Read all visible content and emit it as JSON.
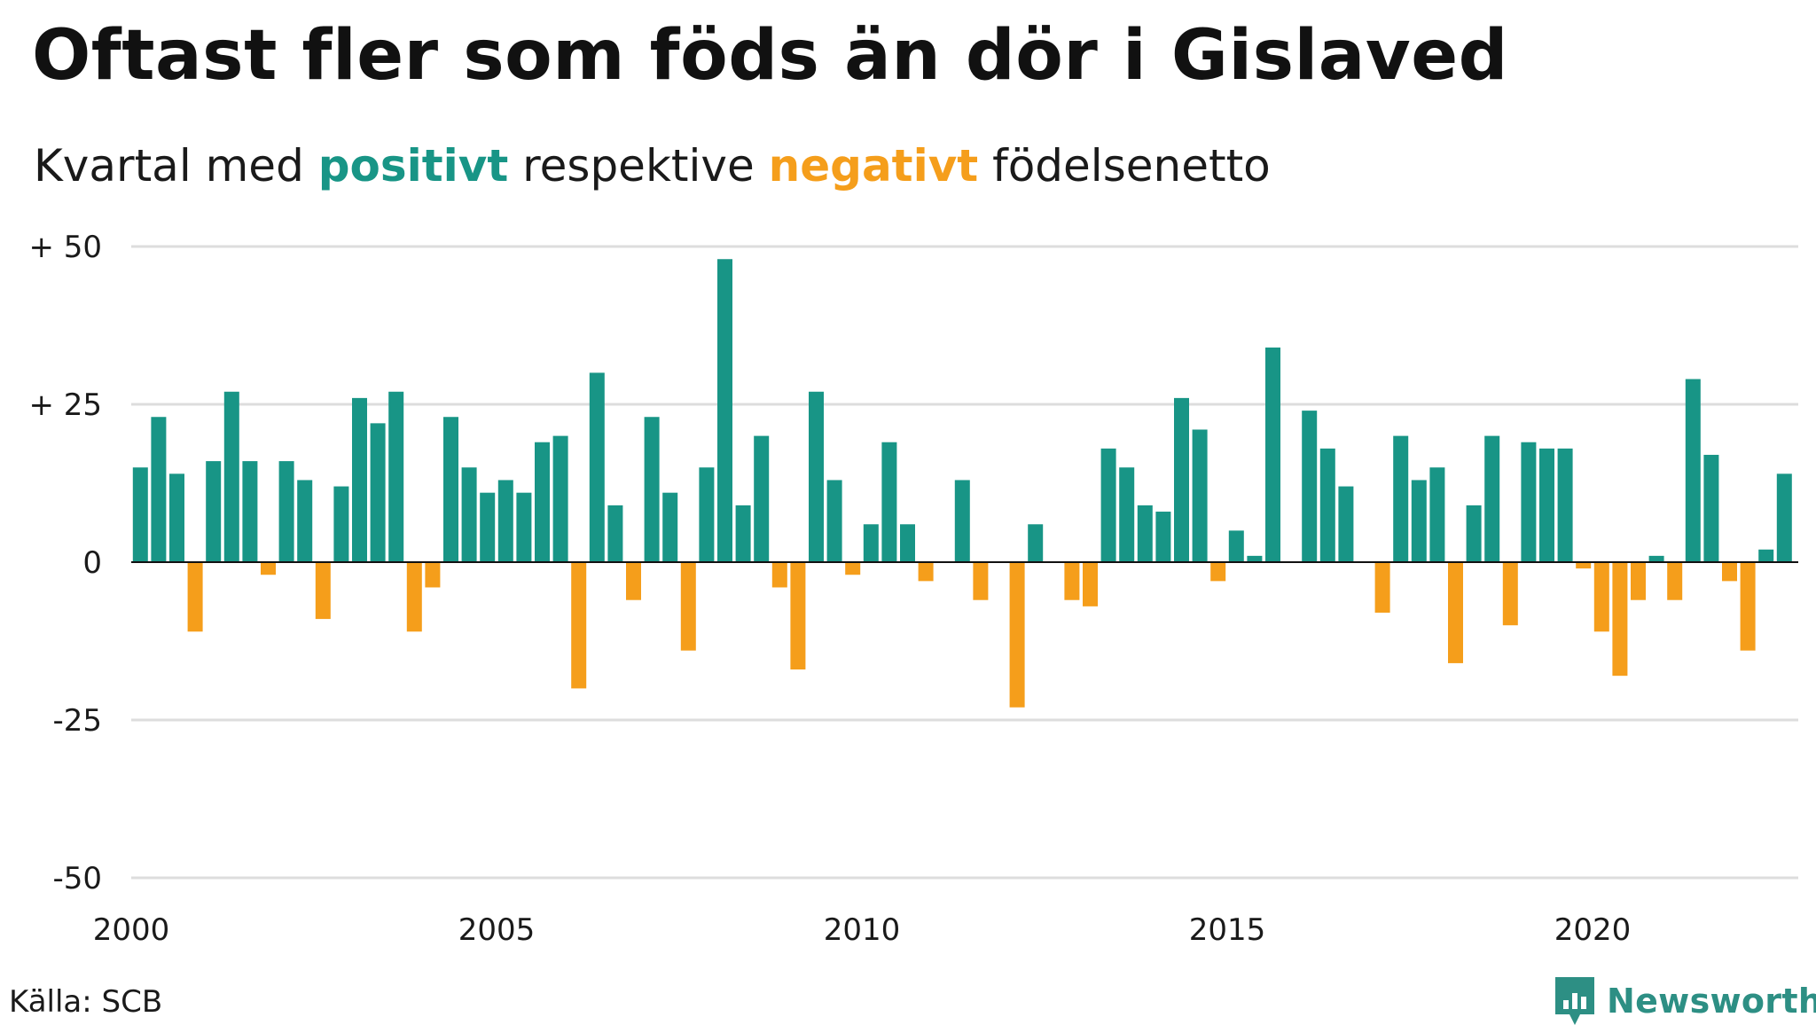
{
  "title": "Oftast fler som föds än dör i Gislaved",
  "subtitle": {
    "prefix": "Kvartal med ",
    "positive": "positivt",
    "middle": " respektive ",
    "negative": "negativt",
    "suffix": " födelsenetto"
  },
  "source": "Källa: SCB",
  "brand": {
    "name": "Newsworthy",
    "icon": "newsworthy-logo-icon"
  },
  "colors": {
    "positive": "#189586",
    "negative": "#f59e1b",
    "grid": "#dddddd",
    "axis": "#111111",
    "brand": "#2d8f84"
  },
  "chart_data": {
    "type": "bar",
    "xlim": [
      2000,
      2023
    ],
    "ylim": [
      -50,
      50
    ],
    "grid": true,
    "y_ticks": [
      {
        "value": 50,
        "label": "+ 50"
      },
      {
        "value": 25,
        "label": "+ 25"
      },
      {
        "value": 0,
        "label": "0"
      },
      {
        "value": -25,
        "label": "-25"
      },
      {
        "value": -50,
        "label": "-50"
      }
    ],
    "x_ticks": [
      {
        "value": 2000,
        "label": "2000"
      },
      {
        "value": 2005,
        "label": "2005"
      },
      {
        "value": 2010,
        "label": "2010"
      },
      {
        "value": 2015,
        "label": "2015"
      },
      {
        "value": 2020,
        "label": "2020"
      }
    ],
    "categories": [
      "2000Q1",
      "2000Q2",
      "2000Q3",
      "2000Q4",
      "2001Q1",
      "2001Q2",
      "2001Q3",
      "2001Q4",
      "2002Q1",
      "2002Q2",
      "2002Q3",
      "2002Q4",
      "2003Q1",
      "2003Q2",
      "2003Q3",
      "2003Q4",
      "2004Q1",
      "2004Q2",
      "2004Q3",
      "2004Q4",
      "2005Q1",
      "2005Q2",
      "2005Q3",
      "2005Q4",
      "2006Q1",
      "2006Q2",
      "2006Q3",
      "2006Q4",
      "2007Q1",
      "2007Q2",
      "2007Q3",
      "2007Q4",
      "2008Q1",
      "2008Q2",
      "2008Q3",
      "2008Q4",
      "2009Q1",
      "2009Q2",
      "2009Q3",
      "2009Q4",
      "2010Q1",
      "2010Q2",
      "2010Q3",
      "2010Q4",
      "2011Q1",
      "2011Q2",
      "2011Q3",
      "2011Q4",
      "2012Q1",
      "2012Q2",
      "2012Q3",
      "2012Q4",
      "2013Q1",
      "2013Q2",
      "2013Q3",
      "2013Q4",
      "2014Q1",
      "2014Q2",
      "2014Q3",
      "2014Q4",
      "2015Q1",
      "2015Q2",
      "2015Q3",
      "2015Q4",
      "2016Q1",
      "2016Q2",
      "2016Q3",
      "2016Q4",
      "2017Q1",
      "2017Q2",
      "2017Q3",
      "2017Q4",
      "2018Q1",
      "2018Q2",
      "2018Q3",
      "2018Q4",
      "2019Q1",
      "2019Q2",
      "2019Q3",
      "2019Q4",
      "2020Q1",
      "2020Q2",
      "2020Q3",
      "2020Q4",
      "2021Q1",
      "2021Q2",
      "2021Q3",
      "2021Q4",
      "2022Q1",
      "2022Q2",
      "2022Q3",
      "2022Q4"
    ],
    "values": [
      15,
      23,
      14,
      -11,
      16,
      27,
      16,
      -2,
      16,
      13,
      -9,
      12,
      26,
      22,
      27,
      -11,
      -4,
      23,
      15,
      11,
      13,
      11,
      19,
      20,
      -20,
      30,
      9,
      -6,
      23,
      11,
      -14,
      15,
      48,
      9,
      20,
      -4,
      -17,
      27,
      13,
      -2,
      6,
      19,
      6,
      -3,
      0,
      13,
      -6,
      0,
      -23,
      6,
      0,
      -6,
      -7,
      18,
      15,
      9,
      8,
      26,
      21,
      -3,
      5,
      1,
      34,
      0,
      24,
      18,
      12,
      0,
      -8,
      20,
      13,
      15,
      -16,
      9,
      20,
      -10,
      19,
      18,
      18,
      -1,
      -11,
      -18,
      -6,
      1,
      -6,
      29,
      17,
      -3,
      -14,
      2,
      14,
      0
    ]
  }
}
